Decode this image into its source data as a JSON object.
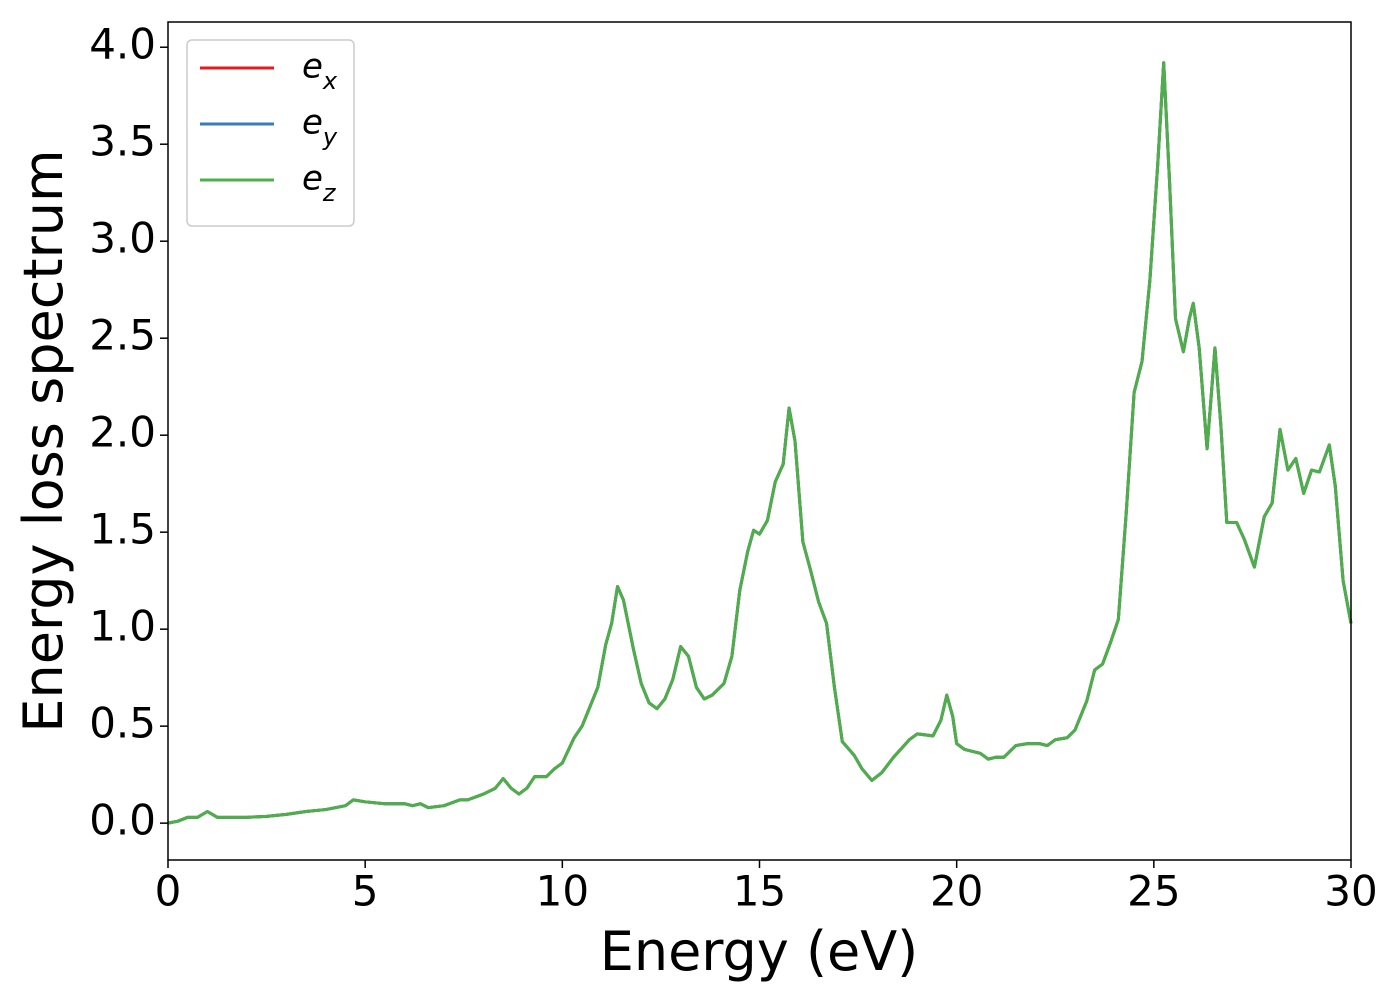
{
  "chart_data": {
    "type": "line",
    "xlabel": "Energy (eV)",
    "ylabel": "Energy loss spectrum",
    "x": [
      0,
      0.25,
      0.5,
      0.75,
      1.0,
      1.25,
      1.5,
      2.0,
      2.5,
      3.0,
      3.5,
      4.0,
      4.5,
      4.7,
      5.0,
      5.5,
      6.0,
      6.2,
      6.4,
      6.6,
      7.0,
      7.4,
      7.6,
      8.0,
      8.3,
      8.5,
      8.7,
      8.9,
      9.1,
      9.3,
      9.6,
      9.8,
      10.0,
      10.3,
      10.5,
      10.7,
      10.9,
      11.1,
      11.25,
      11.4,
      11.55,
      11.8,
      12.0,
      12.2,
      12.4,
      12.6,
      12.8,
      13.0,
      13.2,
      13.4,
      13.6,
      13.8,
      14.1,
      14.3,
      14.5,
      14.7,
      14.85,
      15.0,
      15.2,
      15.4,
      15.6,
      15.75,
      15.9,
      16.1,
      16.3,
      16.5,
      16.7,
      16.9,
      17.1,
      17.4,
      17.6,
      17.85,
      18.1,
      18.4,
      18.8,
      19.0,
      19.4,
      19.6,
      19.75,
      19.9,
      20.0,
      20.2,
      20.6,
      20.8,
      21.0,
      21.2,
      21.5,
      21.8,
      22.1,
      22.3,
      22.5,
      22.8,
      23.0,
      23.3,
      23.5,
      23.7,
      23.9,
      24.1,
      24.3,
      24.5,
      24.7,
      24.9,
      25.1,
      25.25,
      25.4,
      25.55,
      25.75,
      25.9,
      26.0,
      26.15,
      26.35,
      26.55,
      26.7,
      26.85,
      27.1,
      27.3,
      27.55,
      27.8,
      28.0,
      28.2,
      28.4,
      28.6,
      28.8,
      29.0,
      29.2,
      29.45,
      29.6,
      29.8,
      30.0
    ],
    "series": [
      {
        "name": "ex",
        "color": "#e41a1c",
        "values": [
          0.0,
          0.01,
          0.03,
          0.03,
          0.06,
          0.03,
          0.03,
          0.03,
          0.035,
          0.045,
          0.06,
          0.07,
          0.09,
          0.12,
          0.11,
          0.1,
          0.1,
          0.09,
          0.1,
          0.08,
          0.09,
          0.12,
          0.12,
          0.15,
          0.18,
          0.23,
          0.18,
          0.15,
          0.18,
          0.24,
          0.24,
          0.28,
          0.31,
          0.44,
          0.5,
          0.6,
          0.7,
          0.92,
          1.03,
          1.22,
          1.15,
          0.9,
          0.72,
          0.62,
          0.59,
          0.64,
          0.74,
          0.91,
          0.86,
          0.7,
          0.64,
          0.66,
          0.72,
          0.86,
          1.2,
          1.4,
          1.51,
          1.49,
          1.56,
          1.76,
          1.85,
          2.14,
          1.97,
          1.45,
          1.3,
          1.14,
          1.03,
          0.7,
          0.42,
          0.35,
          0.28,
          0.22,
          0.26,
          0.34,
          0.43,
          0.46,
          0.45,
          0.53,
          0.66,
          0.55,
          0.41,
          0.38,
          0.36,
          0.33,
          0.34,
          0.34,
          0.4,
          0.41,
          0.41,
          0.4,
          0.43,
          0.44,
          0.48,
          0.63,
          0.79,
          0.82,
          0.93,
          1.05,
          1.6,
          2.22,
          2.38,
          2.8,
          3.4,
          3.92,
          3.3,
          2.6,
          2.43,
          2.6,
          2.68,
          2.45,
          1.93,
          2.45,
          2.05,
          1.55,
          1.55,
          1.46,
          1.32,
          1.58,
          1.65,
          2.03,
          1.82,
          1.88,
          1.7,
          1.82,
          1.81,
          1.95,
          1.74,
          1.25,
          1.03
        ]
      },
      {
        "name": "ey",
        "color": "#377eb8",
        "values": [
          0.0,
          0.01,
          0.03,
          0.03,
          0.06,
          0.03,
          0.03,
          0.03,
          0.035,
          0.045,
          0.06,
          0.07,
          0.09,
          0.12,
          0.11,
          0.1,
          0.1,
          0.09,
          0.1,
          0.08,
          0.09,
          0.12,
          0.12,
          0.15,
          0.18,
          0.23,
          0.18,
          0.15,
          0.18,
          0.24,
          0.24,
          0.28,
          0.31,
          0.44,
          0.5,
          0.6,
          0.7,
          0.92,
          1.03,
          1.22,
          1.15,
          0.9,
          0.72,
          0.62,
          0.59,
          0.64,
          0.74,
          0.91,
          0.86,
          0.7,
          0.64,
          0.66,
          0.72,
          0.86,
          1.2,
          1.4,
          1.51,
          1.49,
          1.56,
          1.76,
          1.85,
          2.14,
          1.97,
          1.45,
          1.3,
          1.14,
          1.03,
          0.7,
          0.42,
          0.35,
          0.28,
          0.22,
          0.26,
          0.34,
          0.43,
          0.46,
          0.45,
          0.53,
          0.66,
          0.55,
          0.41,
          0.38,
          0.36,
          0.33,
          0.34,
          0.34,
          0.4,
          0.41,
          0.41,
          0.4,
          0.43,
          0.44,
          0.48,
          0.63,
          0.79,
          0.82,
          0.93,
          1.05,
          1.6,
          2.22,
          2.38,
          2.8,
          3.4,
          3.92,
          3.3,
          2.6,
          2.43,
          2.6,
          2.68,
          2.45,
          1.93,
          2.45,
          2.05,
          1.55,
          1.55,
          1.46,
          1.32,
          1.58,
          1.65,
          2.03,
          1.82,
          1.88,
          1.7,
          1.82,
          1.81,
          1.95,
          1.74,
          1.25,
          1.03
        ]
      },
      {
        "name": "ez",
        "color": "#4daf4a",
        "values": [
          0.0,
          0.01,
          0.03,
          0.03,
          0.06,
          0.03,
          0.03,
          0.03,
          0.035,
          0.045,
          0.06,
          0.07,
          0.09,
          0.12,
          0.11,
          0.1,
          0.1,
          0.09,
          0.1,
          0.08,
          0.09,
          0.12,
          0.12,
          0.15,
          0.18,
          0.23,
          0.18,
          0.15,
          0.18,
          0.24,
          0.24,
          0.28,
          0.31,
          0.44,
          0.5,
          0.6,
          0.7,
          0.92,
          1.03,
          1.22,
          1.15,
          0.9,
          0.72,
          0.62,
          0.59,
          0.64,
          0.74,
          0.91,
          0.86,
          0.7,
          0.64,
          0.66,
          0.72,
          0.86,
          1.2,
          1.4,
          1.51,
          1.49,
          1.56,
          1.76,
          1.85,
          2.14,
          1.97,
          1.45,
          1.3,
          1.14,
          1.03,
          0.7,
          0.42,
          0.35,
          0.28,
          0.22,
          0.26,
          0.34,
          0.43,
          0.46,
          0.45,
          0.53,
          0.66,
          0.55,
          0.41,
          0.38,
          0.36,
          0.33,
          0.34,
          0.34,
          0.4,
          0.41,
          0.41,
          0.4,
          0.43,
          0.44,
          0.48,
          0.63,
          0.79,
          0.82,
          0.93,
          1.05,
          1.6,
          2.22,
          2.38,
          2.8,
          3.4,
          3.92,
          3.3,
          2.6,
          2.43,
          2.6,
          2.68,
          2.45,
          1.93,
          2.45,
          2.05,
          1.55,
          1.55,
          1.46,
          1.32,
          1.58,
          1.65,
          2.03,
          1.82,
          1.88,
          1.7,
          1.82,
          1.81,
          1.95,
          1.74,
          1.25,
          1.03
        ]
      }
    ],
    "xlim": [
      0,
      30
    ],
    "xticks": [
      0,
      5,
      10,
      15,
      20,
      25,
      30
    ],
    "ylim": [
      -0.19,
      4.13
    ],
    "yticks": [
      {
        "value": 0,
        "label": "0.0"
      },
      0.5,
      {
        "value": 1,
        "label": "1.0"
      },
      1.5,
      {
        "value": 2,
        "label": "2.0"
      },
      2.5,
      {
        "value": 3,
        "label": "3.0"
      },
      3.5,
      {
        "value": 4,
        "label": "4.0"
      }
    ],
    "legend": "upper left",
    "grid": false
  }
}
